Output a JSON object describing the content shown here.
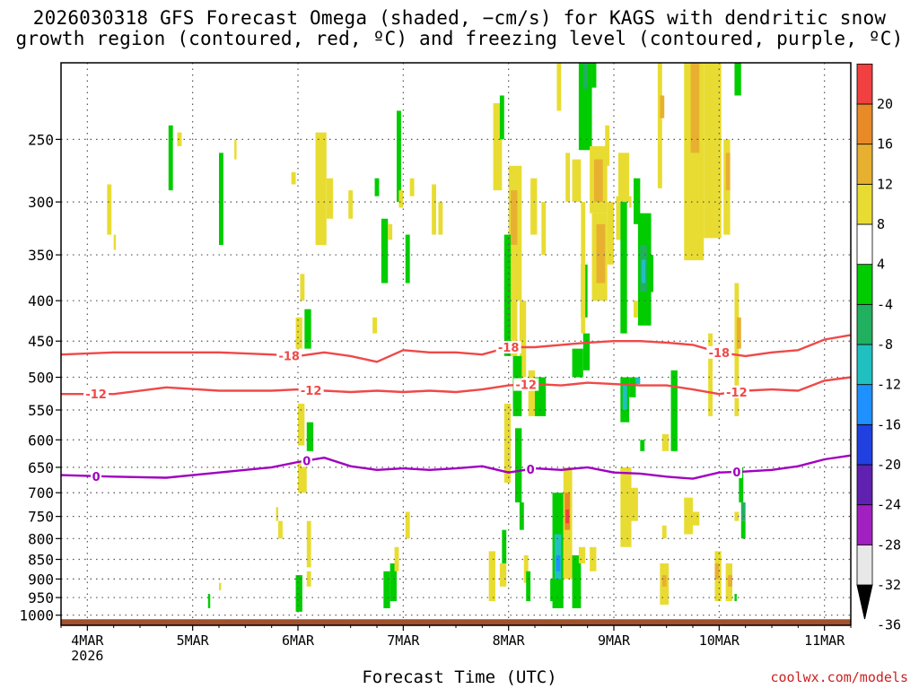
{
  "chart_data": {
    "type": "heatmap",
    "title_line1": "2026030318 GFS Forecast Omega (shaded, −cm/s) for KAGS with dendritic snow",
    "title_line2": "growth region (contoured, red, ºC) and freezing level (contoured, purple, ºC)",
    "xlabel": "Forecast Time (UTC)",
    "credit": "coolwx.com/models",
    "x_ticks": [
      "4MAR",
      "5MAR",
      "6MAR",
      "7MAR",
      "8MAR",
      "9MAR",
      "10MAR",
      "11MAR"
    ],
    "x_tick_hours": [
      6,
      30,
      54,
      78,
      102,
      126,
      150,
      174
    ],
    "x_year_label": "2026",
    "x_range_hours": [
      0,
      180
    ],
    "y_ticks": [
      250,
      300,
      350,
      400,
      450,
      500,
      550,
      600,
      650,
      700,
      750,
      800,
      850,
      900,
      950,
      1000
    ],
    "y_range_hpa": [
      1030,
      200
    ],
    "y_scale": "log-pressure",
    "colorbar": {
      "labels": [
        "20",
        "16",
        "12",
        "8",
        "4",
        "-4",
        "-8",
        "-12",
        "-16",
        "-20",
        "-24",
        "-28",
        "-32",
        "-36"
      ],
      "colors": [
        "#e8e8e8",
        "#a020c0",
        "#6020b0",
        "#2040e0",
        "#1e90ff",
        "#20c0c0",
        "#20b060",
        "#00cc00",
        "#ffffff",
        "#e8dc32",
        "#e8b030",
        "#e88a28",
        "#f04040",
        "#e8007a"
      ]
    },
    "contours": [
      {
        "name": "-18C",
        "color": "#f04848",
        "label": "-18",
        "hours": [
          0,
          12,
          24,
          36,
          48,
          54,
          60,
          66,
          72,
          78,
          84,
          90,
          96,
          102,
          108,
          114,
          120,
          126,
          132,
          138,
          144,
          150,
          156,
          162,
          168,
          174,
          180
        ],
        "hpa": [
          468,
          465,
          465,
          465,
          468,
          470,
          465,
          470,
          478,
          462,
          465,
          465,
          468,
          458,
          458,
          455,
          452,
          450,
          450,
          452,
          455,
          465,
          470,
          465,
          462,
          448,
          442
        ],
        "label_hours": [
          52,
          102,
          150
        ]
      },
      {
        "name": "-12C",
        "color": "#f04848",
        "label": "-12",
        "hours": [
          0,
          12,
          24,
          36,
          48,
          54,
          60,
          66,
          72,
          78,
          84,
          90,
          96,
          102,
          108,
          114,
          120,
          126,
          132,
          138,
          144,
          150,
          156,
          162,
          168,
          174,
          180
        ],
        "hpa": [
          525,
          525,
          515,
          520,
          520,
          518,
          520,
          522,
          520,
          522,
          520,
          522,
          518,
          512,
          510,
          512,
          508,
          510,
          512,
          512,
          518,
          525,
          520,
          518,
          520,
          505,
          500
        ],
        "label_hours": [
          8,
          57,
          106,
          154
        ]
      },
      {
        "name": "0C",
        "color": "#a000c0",
        "label": "0",
        "hours": [
          0,
          12,
          24,
          36,
          48,
          54,
          60,
          66,
          72,
          78,
          84,
          90,
          96,
          102,
          108,
          114,
          120,
          126,
          132,
          138,
          144,
          150,
          156,
          162,
          168,
          174,
          180
        ],
        "hpa": [
          665,
          668,
          670,
          660,
          650,
          640,
          632,
          648,
          655,
          652,
          655,
          652,
          648,
          660,
          652,
          655,
          650,
          660,
          662,
          668,
          672,
          660,
          658,
          655,
          648,
          635,
          628
        ],
        "label_hours": [
          8,
          56,
          107,
          154
        ]
      }
    ],
    "shading_regions": [
      {
        "h0": 24.5,
        "h1": 25.5,
        "p0": 240,
        "p1": 290,
        "v": -6
      },
      {
        "h0": 26.5,
        "h1": 27.5,
        "p0": 245,
        "p1": 255,
        "v": 5
      },
      {
        "h0": 36.0,
        "h1": 37.0,
        "p0": 260,
        "p1": 340,
        "v": -6
      },
      {
        "h0": 39.5,
        "h1": 40.0,
        "p0": 250,
        "p1": 265,
        "v": 5
      },
      {
        "h0": 10.5,
        "h1": 11.5,
        "p0": 285,
        "p1": 330,
        "v": 5
      },
      {
        "h0": 12.0,
        "h1": 12.5,
        "p0": 330,
        "p1": 345,
        "v": 5
      },
      {
        "h0": 58.0,
        "h1": 60.5,
        "p0": 245,
        "p1": 340,
        "v": 5
      },
      {
        "h0": 60.5,
        "h1": 62.0,
        "p0": 280,
        "p1": 315,
        "v": 5
      },
      {
        "h0": 52.5,
        "h1": 53.5,
        "p0": 275,
        "p1": 285,
        "v": 5
      },
      {
        "h0": 65.5,
        "h1": 66.5,
        "p0": 290,
        "p1": 315,
        "v": 5
      },
      {
        "h0": 71.5,
        "h1": 72.5,
        "p0": 280,
        "p1": 295,
        "v": -6
      },
      {
        "h0": 76.5,
        "h1": 77.5,
        "p0": 230,
        "p1": 300,
        "v": -6
      },
      {
        "h0": 77.0,
        "h1": 78.0,
        "p0": 290,
        "p1": 305,
        "v": 5
      },
      {
        "h0": 79.5,
        "h1": 80.5,
        "p0": 280,
        "p1": 295,
        "v": 5
      },
      {
        "h0": 84.5,
        "h1": 85.5,
        "p0": 285,
        "p1": 330,
        "v": 5
      },
      {
        "h0": 86.0,
        "h1": 87.0,
        "p0": 300,
        "p1": 330,
        "v": 5
      },
      {
        "h0": 73.0,
        "h1": 74.5,
        "p0": 315,
        "p1": 380,
        "v": -6
      },
      {
        "h0": 74.5,
        "h1": 75.5,
        "p0": 320,
        "p1": 335,
        "v": 5
      },
      {
        "h0": 78.5,
        "h1": 79.5,
        "p0": 330,
        "p1": 380,
        "v": -6
      },
      {
        "h0": 54.5,
        "h1": 55.5,
        "p0": 370,
        "p1": 400,
        "v": 5
      },
      {
        "h0": 53.5,
        "h1": 55.0,
        "p0": 420,
        "p1": 460,
        "v": 5
      },
      {
        "h0": 55.5,
        "h1": 57.0,
        "p0": 410,
        "p1": 460,
        "v": -6
      },
      {
        "h0": 71.0,
        "h1": 72.0,
        "p0": 420,
        "p1": 440,
        "v": 5
      },
      {
        "h0": 54.0,
        "h1": 55.5,
        "p0": 540,
        "p1": 610,
        "v": 5
      },
      {
        "h0": 56.0,
        "h1": 57.5,
        "p0": 570,
        "p1": 620,
        "v": -6
      },
      {
        "h0": 54.0,
        "h1": 56.0,
        "p0": 640,
        "p1": 700,
        "v": 5
      },
      {
        "h0": 56.0,
        "h1": 57.0,
        "p0": 760,
        "p1": 870,
        "v": 5
      },
      {
        "h0": 53.5,
        "h1": 55.0,
        "p0": 890,
        "p1": 990,
        "v": -6
      },
      {
        "h0": 56.0,
        "h1": 57.0,
        "p0": 880,
        "p1": 920,
        "v": 5
      },
      {
        "h0": 49.0,
        "h1": 49.5,
        "p0": 730,
        "p1": 760,
        "v": 5
      },
      {
        "h0": 49.5,
        "h1": 50.5,
        "p0": 760,
        "p1": 800,
        "v": 5
      },
      {
        "h0": 33.5,
        "h1": 34.0,
        "p0": 940,
        "p1": 980,
        "v": -6
      },
      {
        "h0": 36.0,
        "h1": 36.5,
        "p0": 910,
        "p1": 930,
        "v": 5
      },
      {
        "h0": 73.5,
        "h1": 75.0,
        "p0": 880,
        "p1": 980,
        "v": -6
      },
      {
        "h0": 75.0,
        "h1": 76.5,
        "p0": 860,
        "p1": 960,
        "v": -6
      },
      {
        "h0": 76.0,
        "h1": 77.0,
        "p0": 820,
        "p1": 880,
        "v": 5
      },
      {
        "h0": 78.5,
        "h1": 79.5,
        "p0": 740,
        "p1": 800,
        "v": 5
      },
      {
        "h0": 98.5,
        "h1": 100.5,
        "p0": 225,
        "p1": 290,
        "v": 5
      },
      {
        "h0": 100.0,
        "h1": 101.0,
        "p0": 220,
        "p1": 250,
        "v": -6
      },
      {
        "h0": 102.0,
        "h1": 105.0,
        "p0": 270,
        "p1": 400,
        "v": 5
      },
      {
        "h0": 102.5,
        "h1": 104.0,
        "p0": 290,
        "p1": 340,
        "v": 10
      },
      {
        "h0": 101.0,
        "h1": 102.5,
        "p0": 330,
        "p1": 470,
        "v": -6
      },
      {
        "h0": 102.5,
        "h1": 104.0,
        "p0": 400,
        "p1": 470,
        "v": 5
      },
      {
        "h0": 104.5,
        "h1": 106.0,
        "p0": 400,
        "p1": 500,
        "v": 5
      },
      {
        "h0": 107.0,
        "h1": 108.5,
        "p0": 280,
        "p1": 330,
        "v": 5
      },
      {
        "h0": 109.5,
        "h1": 110.5,
        "p0": 300,
        "p1": 350,
        "v": 5
      },
      {
        "h0": 113.0,
        "h1": 114.0,
        "p0": 200,
        "p1": 230,
        "v": 5
      },
      {
        "h0": 115.0,
        "h1": 116.0,
        "p0": 260,
        "p1": 300,
        "v": 5
      },
      {
        "h0": 103.0,
        "h1": 105.0,
        "p0": 470,
        "p1": 560,
        "v": -6
      },
      {
        "h0": 101.0,
        "h1": 102.5,
        "p0": 540,
        "p1": 680,
        "v": 5
      },
      {
        "h0": 103.5,
        "h1": 105.0,
        "p0": 580,
        "p1": 720,
        "v": -6
      },
      {
        "h0": 104.5,
        "h1": 105.5,
        "p0": 720,
        "p1": 780,
        "v": -6
      },
      {
        "h0": 106.5,
        "h1": 108.0,
        "p0": 490,
        "p1": 560,
        "v": 5
      },
      {
        "h0": 108.0,
        "h1": 110.5,
        "p0": 500,
        "p1": 560,
        "v": -6
      },
      {
        "h0": 97.5,
        "h1": 99.0,
        "p0": 830,
        "p1": 960,
        "v": 5
      },
      {
        "h0": 100.0,
        "h1": 101.5,
        "p0": 860,
        "p1": 920,
        "v": 5
      },
      {
        "h0": 100.5,
        "h1": 101.5,
        "p0": 780,
        "p1": 860,
        "v": -6
      },
      {
        "h0": 105.5,
        "h1": 106.5,
        "p0": 840,
        "p1": 910,
        "v": 5
      },
      {
        "h0": 106.0,
        "h1": 107.0,
        "p0": 880,
        "p1": 960,
        "v": -6
      },
      {
        "h0": 111.5,
        "h1": 112.5,
        "p0": 900,
        "p1": 960,
        "v": -6
      },
      {
        "h0": 118.0,
        "h1": 121.0,
        "p0": 190,
        "p1": 245,
        "v": -6
      },
      {
        "h0": 119.0,
        "h1": 120.0,
        "p0": 190,
        "p1": 205,
        "v": -10
      },
      {
        "h0": 121.0,
        "h1": 122.0,
        "p0": 200,
        "p1": 215,
        "v": -6
      },
      {
        "h0": 120.5,
        "h1": 124.5,
        "p0": 255,
        "p1": 310,
        "v": 5
      },
      {
        "h0": 121.5,
        "h1": 123.5,
        "p0": 265,
        "p1": 300,
        "v": 9
      },
      {
        "h0": 121.0,
        "h1": 124.5,
        "p0": 310,
        "p1": 400,
        "v": 5
      },
      {
        "h0": 122.0,
        "h1": 124.0,
        "p0": 320,
        "p1": 380,
        "v": 9
      },
      {
        "h0": 124.5,
        "h1": 126.0,
        "p0": 300,
        "p1": 360,
        "v": 5
      },
      {
        "h0": 116.5,
        "h1": 118.5,
        "p0": 265,
        "p1": 300,
        "v": 5
      },
      {
        "h0": 124.0,
        "h1": 125.0,
        "p0": 240,
        "p1": 270,
        "v": 5
      },
      {
        "h0": 127.0,
        "h1": 129.5,
        "p0": 260,
        "p1": 300,
        "v": 5
      },
      {
        "h0": 126.5,
        "h1": 127.5,
        "p0": 295,
        "p1": 335,
        "v": 5
      },
      {
        "h0": 129.5,
        "h1": 130.0,
        "p0": 295,
        "p1": 305,
        "v": 5
      },
      {
        "h0": 118.5,
        "h1": 120.0,
        "p0": 360,
        "p1": 420,
        "v": -6
      },
      {
        "h0": 119.0,
        "h1": 120.5,
        "p0": 440,
        "p1": 490,
        "v": -6
      },
      {
        "h0": 116.5,
        "h1": 119.0,
        "p0": 460,
        "p1": 500,
        "v": -6
      },
      {
        "h0": 127.5,
        "h1": 129.0,
        "p0": 300,
        "p1": 440,
        "v": -6
      },
      {
        "h0": 127.5,
        "h1": 129.5,
        "p0": 500,
        "p1": 570,
        "v": -6
      },
      {
        "h0": 128.0,
        "h1": 129.0,
        "p0": 510,
        "p1": 550,
        "v": -12
      },
      {
        "h0": 129.5,
        "h1": 131.0,
        "p0": 500,
        "p1": 530,
        "v": -6
      },
      {
        "h0": 131.0,
        "h1": 132.0,
        "p0": 500,
        "p1": 510,
        "v": -12
      },
      {
        "h0": 132.0,
        "h1": 133.0,
        "p0": 600,
        "p1": 620,
        "v": -6
      },
      {
        "h0": 118.5,
        "h1": 119.5,
        "p0": 300,
        "p1": 440,
        "v": 5
      },
      {
        "h0": 127.5,
        "h1": 130.0,
        "p0": 650,
        "p1": 820,
        "v": 5
      },
      {
        "h0": 129.5,
        "h1": 131.5,
        "p0": 690,
        "p1": 760,
        "v": 5
      },
      {
        "h0": 137.0,
        "h1": 138.5,
        "p0": 590,
        "p1": 620,
        "v": 5
      },
      {
        "h0": 137.0,
        "h1": 138.0,
        "p0": 770,
        "p1": 800,
        "v": 5
      },
      {
        "h0": 112.0,
        "h1": 114.5,
        "p0": 700,
        "p1": 980,
        "v": -6
      },
      {
        "h0": 112.5,
        "h1": 114.0,
        "p0": 790,
        "p1": 900,
        "v": -12
      },
      {
        "h0": 112.8,
        "h1": 113.8,
        "p0": 840,
        "p1": 880,
        "v": -16
      },
      {
        "h0": 114.5,
        "h1": 116.5,
        "p0": 650,
        "p1": 900,
        "v": 5
      },
      {
        "h0": 114.8,
        "h1": 116.0,
        "p0": 700,
        "p1": 780,
        "v": 12
      },
      {
        "h0": 115.0,
        "h1": 115.8,
        "p0": 735,
        "p1": 765,
        "v": 18
      },
      {
        "h0": 116.5,
        "h1": 118.5,
        "p0": 840,
        "p1": 980,
        "v": -6
      },
      {
        "h0": 118.0,
        "h1": 119.5,
        "p0": 820,
        "p1": 860,
        "v": 5
      },
      {
        "h0": 120.5,
        "h1": 122.0,
        "p0": 820,
        "p1": 880,
        "v": 5
      },
      {
        "h0": 136.5,
        "h1": 138.5,
        "p0": 860,
        "p1": 970,
        "v": 5
      },
      {
        "h0": 137.0,
        "h1": 138.0,
        "p0": 890,
        "p1": 920,
        "v": 9
      },
      {
        "h0": 136.0,
        "h1": 137.0,
        "p0": 170,
        "p1": 245,
        "v": 5
      },
      {
        "h0": 136.5,
        "h1": 137.5,
        "p0": 220,
        "p1": 235,
        "v": 9
      },
      {
        "h0": 142.0,
        "h1": 146.5,
        "p0": 180,
        "p1": 320,
        "v": 5
      },
      {
        "h0": 143.5,
        "h1": 145.5,
        "p0": 200,
        "p1": 260,
        "v": 10
      },
      {
        "h0": 146.5,
        "h1": 150.5,
        "p0": 180,
        "p1": 300,
        "v": 5
      },
      {
        "h0": 147.5,
        "h1": 149.5,
        "p0": 230,
        "p1": 290,
        "v": 5
      },
      {
        "h0": 151.0,
        "h1": 152.5,
        "p0": 250,
        "p1": 330,
        "v": 5
      },
      {
        "h0": 151.5,
        "h1": 152.5,
        "p0": 260,
        "p1": 290,
        "v": 9
      },
      {
        "h0": 153.5,
        "h1": 155.0,
        "p0": 200,
        "p1": 220,
        "v": -6
      },
      {
        "h0": 131.5,
        "h1": 134.5,
        "p0": 310,
        "p1": 430,
        "v": -6
      },
      {
        "h0": 132.0,
        "h1": 133.5,
        "p0": 340,
        "p1": 390,
        "v": -10
      },
      {
        "h0": 132.3,
        "h1": 133.2,
        "p0": 355,
        "p1": 380,
        "v": -12
      },
      {
        "h0": 134.0,
        "h1": 135.0,
        "p0": 350,
        "p1": 390,
        "v": -6
      },
      {
        "h0": 130.5,
        "h1": 132.0,
        "p0": 280,
        "p1": 320,
        "v": -6
      },
      {
        "h0": 130.5,
        "h1": 131.5,
        "p0": 400,
        "p1": 420,
        "v": 5
      },
      {
        "h0": 147.5,
        "h1": 148.5,
        "p0": 440,
        "p1": 560,
        "v": 5
      },
      {
        "h0": 153.5,
        "h1": 154.5,
        "p0": 380,
        "p1": 560,
        "v": 5
      },
      {
        "h0": 154.0,
        "h1": 155.0,
        "p0": 420,
        "p1": 460,
        "v": 9
      },
      {
        "h0": 154.5,
        "h1": 155.5,
        "p0": 650,
        "p1": 720,
        "v": -6
      },
      {
        "h0": 155.0,
        "h1": 156.0,
        "p0": 720,
        "p1": 760,
        "v": -10
      },
      {
        "h0": 155.0,
        "h1": 156.0,
        "p0": 760,
        "p1": 800,
        "v": -6
      },
      {
        "h0": 139.0,
        "h1": 140.5,
        "p0": 490,
        "p1": 620,
        "v": -6
      },
      {
        "h0": 149.0,
        "h1": 150.5,
        "p0": 830,
        "p1": 960,
        "v": 5
      },
      {
        "h0": 149.0,
        "h1": 150.0,
        "p0": 860,
        "p1": 900,
        "v": 9
      },
      {
        "h0": 153.5,
        "h1": 154.5,
        "p0": 740,
        "p1": 760,
        "v": 5
      },
      {
        "h0": 151.5,
        "h1": 153.0,
        "p0": 860,
        "p1": 960,
        "v": 5
      },
      {
        "h0": 152.0,
        "h1": 153.0,
        "p0": 890,
        "p1": 920,
        "v": 9
      },
      {
        "h0": 153.5,
        "h1": 154.0,
        "p0": 940,
        "p1": 960,
        "v": -6
      },
      {
        "h0": 142.0,
        "h1": 144.0,
        "p0": 710,
        "p1": 790,
        "v": 5
      },
      {
        "h0": 144.0,
        "h1": 145.5,
        "p0": 740,
        "p1": 770,
        "v": 5
      }
    ]
  }
}
